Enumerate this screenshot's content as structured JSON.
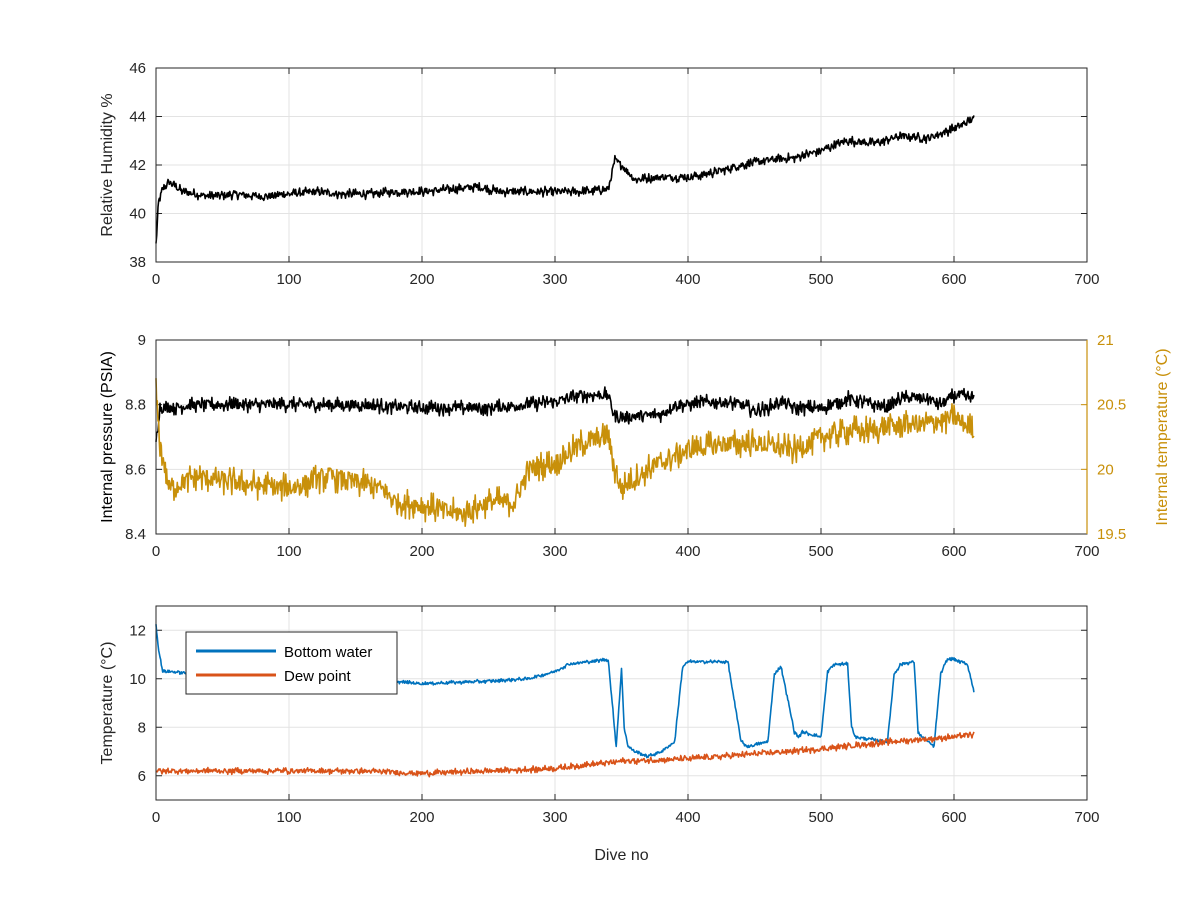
{
  "chart_data": [
    {
      "type": "line",
      "xlabel": "",
      "ylabel": "Relative Humidity %",
      "xlim": [
        0,
        700
      ],
      "ylim": [
        38,
        46
      ],
      "xticks": [
        "0",
        "100",
        "200",
        "300",
        "400",
        "500",
        "600",
        "700"
      ],
      "yticks": [
        "38",
        "40",
        "42",
        "44",
        "46"
      ],
      "grid": true,
      "series": [
        {
          "color": "#000000",
          "x": [
            0,
            2,
            5,
            10,
            20,
            40,
            60,
            80,
            100,
            120,
            140,
            160,
            180,
            200,
            220,
            240,
            260,
            280,
            300,
            320,
            340,
            345,
            350,
            360,
            380,
            400,
            420,
            440,
            460,
            480,
            500,
            520,
            540,
            560,
            580,
            600,
            615
          ],
          "y": [
            38.7,
            40.5,
            41.0,
            41.3,
            40.9,
            40.7,
            40.8,
            40.7,
            40.8,
            40.9,
            40.8,
            40.8,
            40.9,
            40.9,
            41.0,
            41.1,
            40.9,
            40.9,
            40.9,
            40.9,
            41.0,
            42.2,
            42.0,
            41.4,
            41.5,
            41.5,
            41.7,
            42.0,
            42.2,
            42.3,
            42.6,
            43.0,
            42.9,
            43.2,
            43.1,
            43.5,
            43.9
          ],
          "noise": 0.22
        }
      ]
    },
    {
      "type": "line",
      "xlabel": "",
      "ylabel": "Internal pressure (PSIA)",
      "ylabel_right": "Internal temperature (°C)",
      "xlim": [
        0,
        700
      ],
      "ylim": [
        8.4,
        9
      ],
      "ylim_right": [
        19.5,
        21
      ],
      "xticks": [
        "0",
        "100",
        "200",
        "300",
        "400",
        "500",
        "600",
        "700"
      ],
      "yticks": [
        "8.4",
        "8.6",
        "8.8",
        "9"
      ],
      "yticks_right": [
        "19.5",
        "20",
        "20.5",
        "21"
      ],
      "grid": true,
      "series": [
        {
          "axis": "left",
          "color": "#000000",
          "x": [
            0,
            3,
            10,
            30,
            60,
            100,
            150,
            200,
            250,
            280,
            300,
            320,
            340,
            345,
            350,
            380,
            390,
            400,
            420,
            440,
            450,
            460,
            470,
            480,
            500,
            510,
            520,
            540,
            550,
            560,
            580,
            590,
            600,
            615
          ],
          "y": [
            8.69,
            8.79,
            8.79,
            8.8,
            8.8,
            8.8,
            8.8,
            8.79,
            8.79,
            8.8,
            8.81,
            8.83,
            8.83,
            8.76,
            8.76,
            8.77,
            8.8,
            8.8,
            8.81,
            8.8,
            8.78,
            8.79,
            8.81,
            8.79,
            8.79,
            8.8,
            8.82,
            8.8,
            8.79,
            8.82,
            8.82,
            8.8,
            8.83,
            8.82
          ],
          "noise": 0.025
        },
        {
          "axis": "right",
          "color": "#c8900a",
          "x": [
            0,
            3,
            10,
            30,
            60,
            100,
            130,
            150,
            170,
            180,
            200,
            230,
            250,
            270,
            280,
            300,
            320,
            340,
            345,
            350,
            370,
            400,
            430,
            450,
            480,
            500,
            520,
            540,
            560,
            580,
            600,
            615
          ],
          "y": [
            20.6,
            20.2,
            19.85,
            19.95,
            19.9,
            19.85,
            19.95,
            19.9,
            19.85,
            19.75,
            19.72,
            19.65,
            19.75,
            19.75,
            20.0,
            20.05,
            20.2,
            20.25,
            20.0,
            19.85,
            20.0,
            20.15,
            20.2,
            20.2,
            20.15,
            20.25,
            20.3,
            20.3,
            20.35,
            20.35,
            20.4,
            20.3
          ],
          "noise": 0.12
        }
      ]
    },
    {
      "type": "line",
      "xlabel": "Dive no",
      "ylabel": "Temperature (°C)",
      "xlim": [
        0,
        700
      ],
      "ylim": [
        5,
        13
      ],
      "xticks": [
        "0",
        "100",
        "200",
        "300",
        "400",
        "500",
        "600",
        "700"
      ],
      "yticks": [
        "6",
        "8",
        "10",
        "12"
      ],
      "grid": true,
      "legend": "top-left",
      "series": [
        {
          "name": "Bottom water",
          "color": "#0072bd",
          "x": [
            0,
            2,
            5,
            10,
            30,
            50,
            100,
            150,
            200,
            250,
            280,
            300,
            310,
            340,
            343,
            346,
            350,
            352,
            355,
            360,
            370,
            380,
            390,
            393,
            396,
            400,
            430,
            435,
            440,
            445,
            460,
            465,
            470,
            480,
            483,
            486,
            500,
            505,
            510,
            520,
            523,
            526,
            550,
            555,
            560,
            570,
            573,
            576,
            585,
            590,
            595,
            600,
            610,
            615
          ],
          "y": [
            12.2,
            11.2,
            10.3,
            10.3,
            10.2,
            10.2,
            10.1,
            10.0,
            9.8,
            9.9,
            10.0,
            10.3,
            10.6,
            10.8,
            9.0,
            7.2,
            10.4,
            8.0,
            7.2,
            7.0,
            6.8,
            7.0,
            7.4,
            9.0,
            10.5,
            10.7,
            10.7,
            9.0,
            7.4,
            7.2,
            7.4,
            10.2,
            10.5,
            7.8,
            7.6,
            7.8,
            7.6,
            10.3,
            10.6,
            10.6,
            8.0,
            7.6,
            7.4,
            10.2,
            10.6,
            10.7,
            7.8,
            7.6,
            7.2,
            10.2,
            10.8,
            10.8,
            10.6,
            9.5
          ],
          "noise": 0.08
        },
        {
          "name": "Dew point",
          "color": "#d95319",
          "x": [
            0,
            50,
            100,
            150,
            200,
            250,
            300,
            350,
            400,
            450,
            500,
            550,
            600,
            615
          ],
          "y": [
            6.2,
            6.2,
            6.2,
            6.2,
            6.1,
            6.2,
            6.3,
            6.6,
            6.7,
            6.9,
            7.1,
            7.4,
            7.6,
            7.7
          ],
          "noise": 0.15
        }
      ]
    }
  ]
}
